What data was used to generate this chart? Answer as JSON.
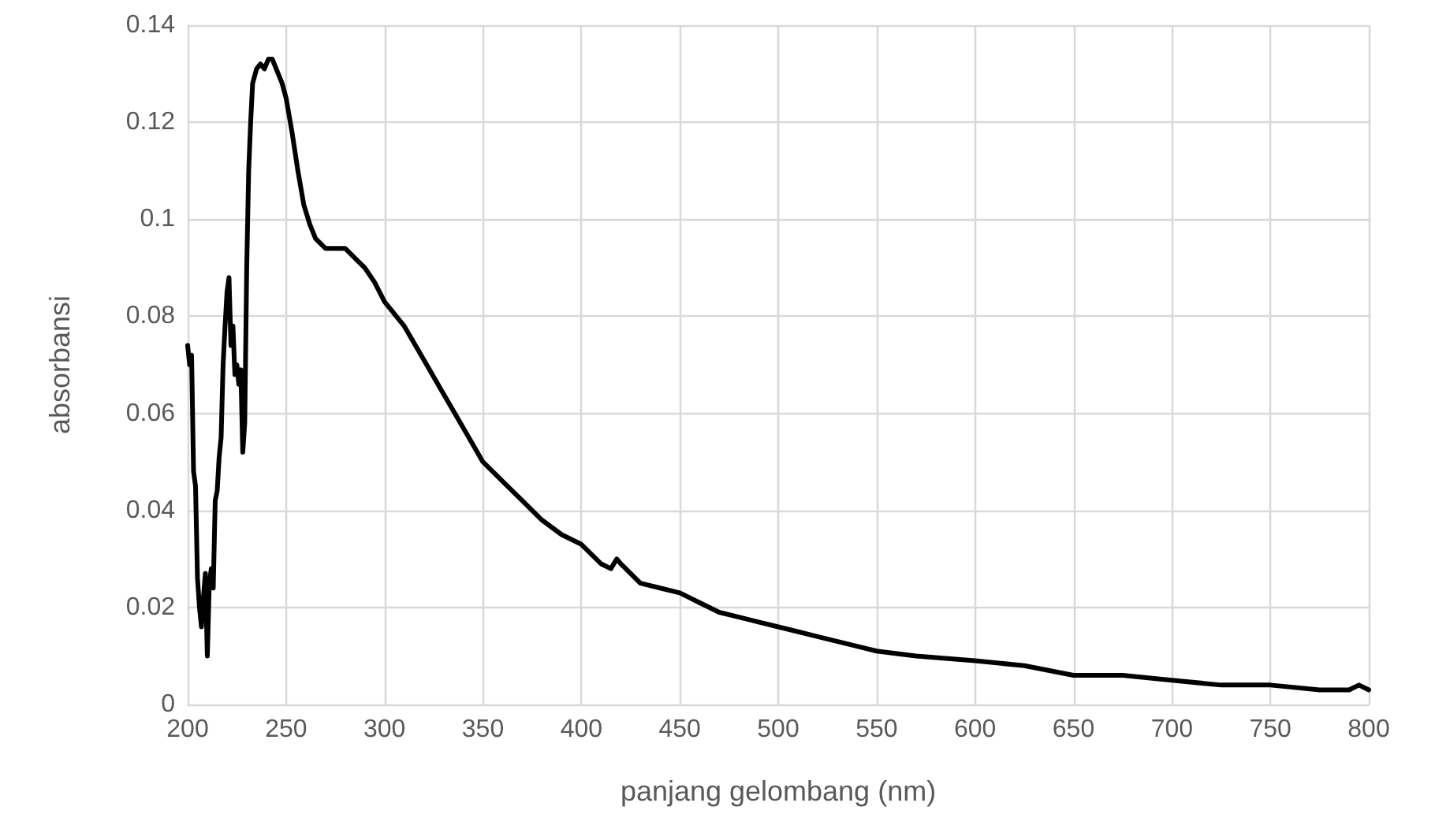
{
  "chart_data": {
    "type": "line",
    "xlabel": "panjang gelombang (nm)",
    "ylabel": "absorbansi",
    "series": [
      {
        "color": "#000000",
        "x": [
          200,
          201,
          202,
          203,
          204,
          205,
          206,
          207,
          208,
          209,
          210,
          211,
          212,
          213,
          214,
          215,
          216,
          217,
          218,
          219,
          220,
          221,
          222,
          223,
          224,
          225,
          226,
          227,
          228,
          229,
          230,
          231,
          232,
          233,
          235,
          237,
          239,
          241,
          243,
          245,
          248,
          250,
          253,
          256,
          259,
          262,
          265,
          270,
          275,
          280,
          285,
          290,
          295,
          300,
          310,
          320,
          330,
          340,
          350,
          360,
          370,
          380,
          390,
          400,
          410,
          415,
          418,
          420,
          430,
          440,
          450,
          460,
          470,
          480,
          490,
          500,
          520,
          540,
          550,
          570,
          600,
          625,
          650,
          675,
          700,
          725,
          750,
          775,
          790,
          795,
          800
        ],
        "values": [
          0.074,
          0.07,
          0.072,
          0.048,
          0.045,
          0.026,
          0.02,
          0.016,
          0.022,
          0.027,
          0.01,
          0.025,
          0.028,
          0.024,
          0.042,
          0.044,
          0.051,
          0.055,
          0.07,
          0.078,
          0.085,
          0.088,
          0.074,
          0.078,
          0.068,
          0.07,
          0.066,
          0.069,
          0.052,
          0.058,
          0.09,
          0.11,
          0.12,
          0.128,
          0.131,
          0.132,
          0.131,
          0.133,
          0.133,
          0.131,
          0.128,
          0.125,
          0.118,
          0.11,
          0.103,
          0.099,
          0.096,
          0.094,
          0.094,
          0.094,
          0.092,
          0.09,
          0.087,
          0.083,
          0.078,
          0.071,
          0.064,
          0.057,
          0.05,
          0.046,
          0.042,
          0.038,
          0.035,
          0.033,
          0.029,
          0.028,
          0.03,
          0.029,
          0.025,
          0.024,
          0.023,
          0.021,
          0.019,
          0.018,
          0.017,
          0.016,
          0.014,
          0.012,
          0.011,
          0.01,
          0.009,
          0.008,
          0.006,
          0.006,
          0.005,
          0.004,
          0.004,
          0.003,
          0.003,
          0.004,
          0.003
        ]
      }
    ],
    "xlim": [
      200,
      800
    ],
    "xticks": [
      200,
      250,
      300,
      350,
      400,
      450,
      500,
      550,
      600,
      650,
      700,
      750,
      800
    ],
    "ylim": [
      0,
      0.14
    ],
    "yticks": [
      0,
      {
        "value": 0.02,
        "label": "0.02"
      },
      {
        "value": 0.04,
        "label": "0.04"
      },
      {
        "value": 0.06,
        "label": "0.06"
      },
      {
        "value": 0.08,
        "label": "0.08"
      },
      {
        "value": 0.1,
        "label": "0.1"
      },
      {
        "value": 0.12,
        "label": "0.12"
      },
      {
        "value": 0.14,
        "label": "0.14"
      }
    ],
    "grid": true,
    "marker": "none",
    "line_style": "solid"
  }
}
